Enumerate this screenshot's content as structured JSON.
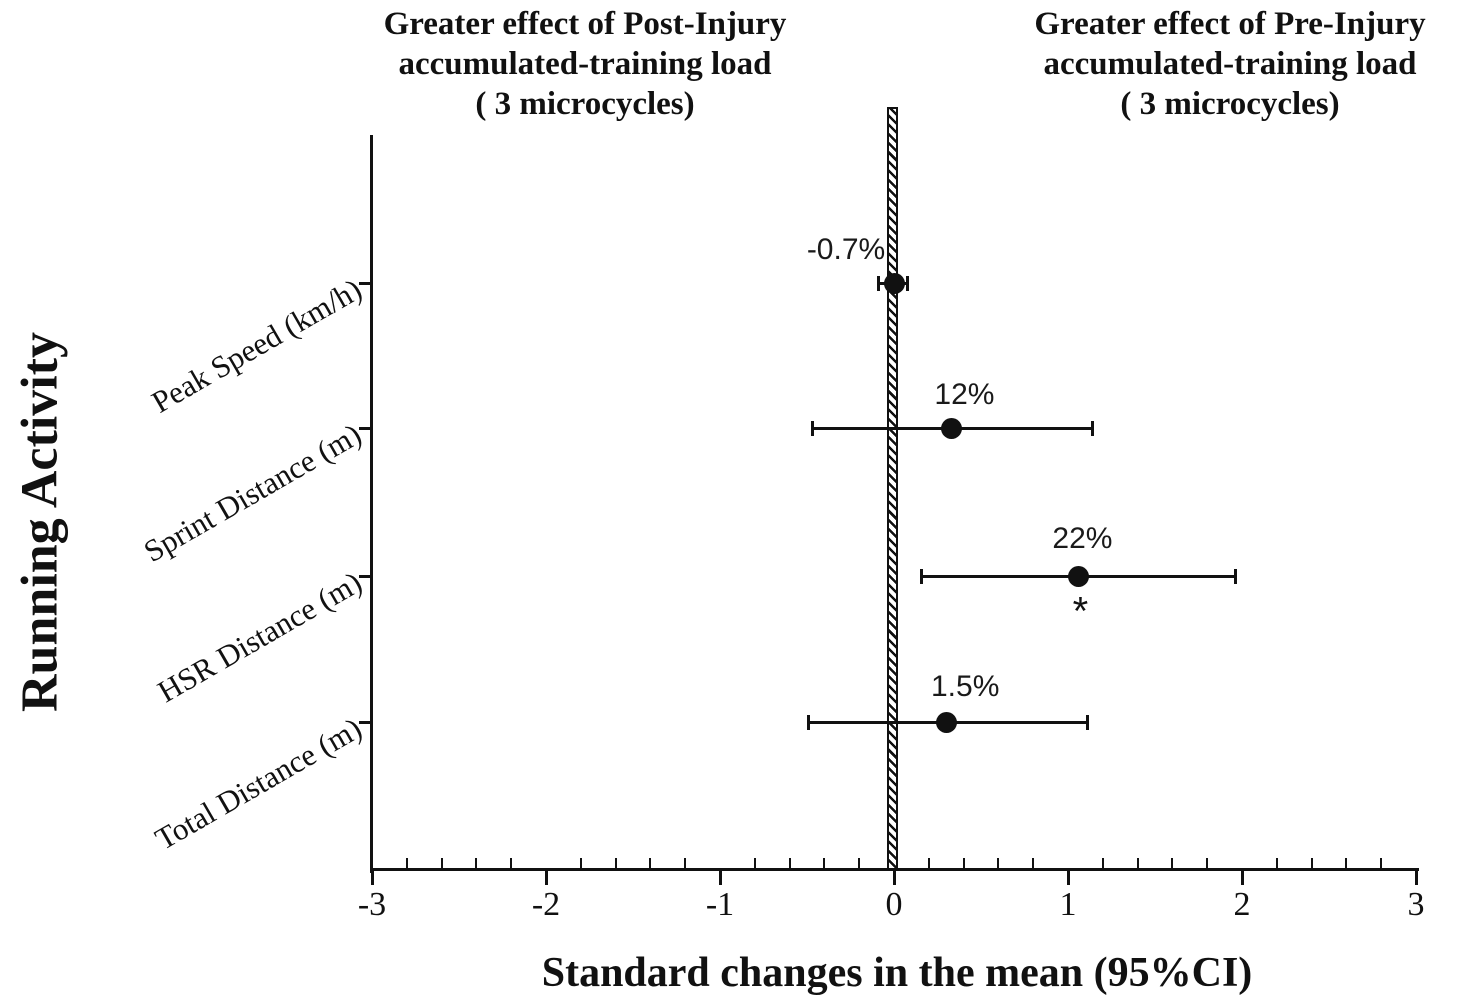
{
  "chart_data": {
    "type": "scatter",
    "subtype": "forest-plot-means-with-95ci",
    "title": "",
    "xlabel": "Standard changes in the mean (95%CI)",
    "ylabel": "Running Activity",
    "xlim": [
      -3,
      3
    ],
    "x_major_ticks": [
      "-3",
      "-2",
      "-1",
      "0",
      "1",
      "2",
      "3"
    ],
    "x_minor_tick_step": 0.2,
    "grid": false,
    "legend": false,
    "reference_line": {
      "x": 0,
      "style": "hatched-vertical-bar"
    },
    "categories": [
      "Peak Speed (km/h)",
      "Sprint Distance (m)",
      "HSR Distance (m)",
      "Total Distance (m)"
    ],
    "series": [
      {
        "category": "Peak Speed (km/h)",
        "mean": 0.0,
        "ci_low": -0.09,
        "ci_high": 0.08,
        "label": "-0.7%",
        "significant": false
      },
      {
        "category": "Sprint Distance (m)",
        "mean": 0.33,
        "ci_low": -0.47,
        "ci_high": 1.14,
        "label": "12%",
        "significant": false
      },
      {
        "category": "HSR Distance (m)",
        "mean": 1.06,
        "ci_low": 0.16,
        "ci_high": 1.96,
        "label": "22%",
        "significant": true
      },
      {
        "category": "Total Distance (m)",
        "mean": 0.3,
        "ci_low": -0.49,
        "ci_high": 1.11,
        "label": "1.5%",
        "significant": false
      }
    ],
    "significance_marker": "*",
    "annotations": {
      "left_header": "Greater effect of Post-Injury\naccumulated-training load\n( 3 microcycles)",
      "right_header": "Greater effect of Pre-Injury\naccumulated-training load\n( 3 microcycles)"
    },
    "colors": {
      "foreground": "#111111",
      "background": "#ffffff"
    }
  }
}
